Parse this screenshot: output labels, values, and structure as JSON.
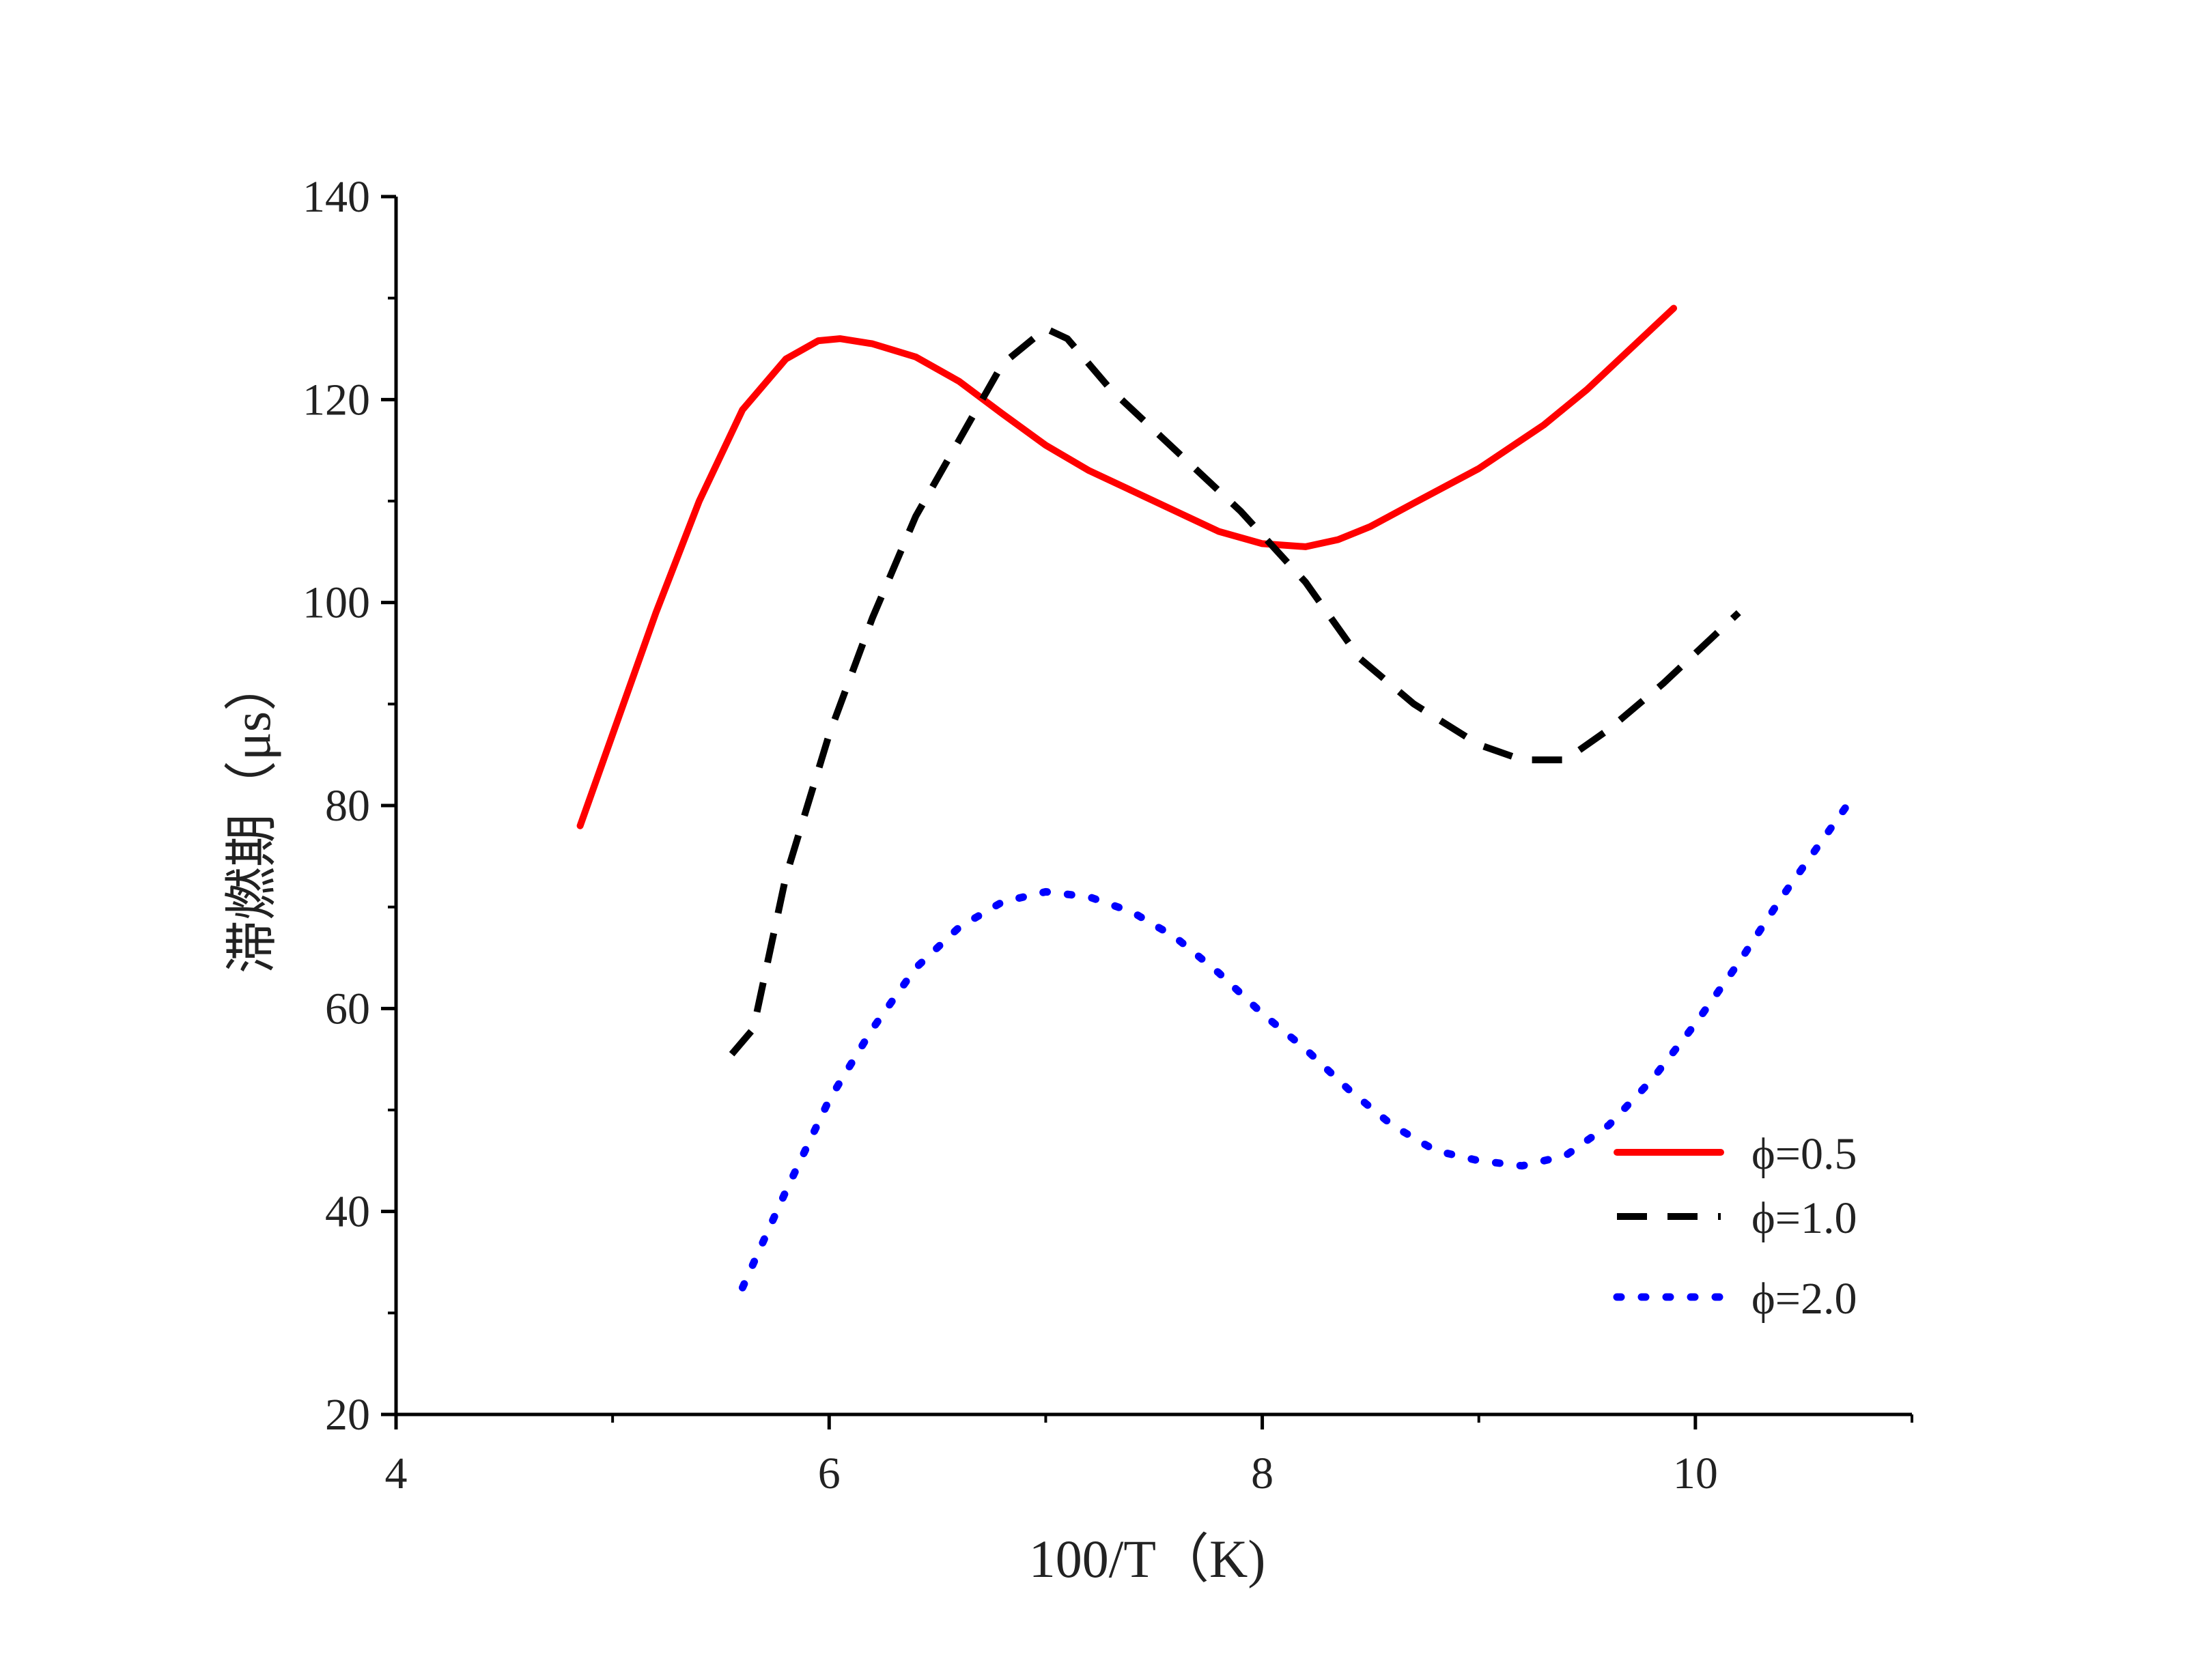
{
  "chart_data": {
    "type": "line",
    "title": "",
    "xlabel": "100/T（K)",
    "ylabel": "滞燃期（μs）",
    "xlim": [
      4,
      11
    ],
    "ylim": [
      20,
      140
    ],
    "xticks": [
      4,
      6,
      8,
      10
    ],
    "xtick_labels": [
      "4",
      "6",
      "8",
      "10"
    ],
    "yticks": [
      20,
      40,
      60,
      80,
      100,
      120,
      140
    ],
    "ytick_labels": [
      "20",
      "40",
      "60",
      "80",
      "100",
      "120",
      "140"
    ],
    "grid": false,
    "legend_position": "lower-right",
    "series": [
      {
        "name": "ϕ=0.5",
        "style": "solid",
        "color": "#ff0000",
        "x": [
          4.85,
          5.0,
          5.2,
          5.4,
          5.6,
          5.8,
          5.95,
          6.05,
          6.2,
          6.4,
          6.6,
          6.8,
          7.0,
          7.2,
          7.4,
          7.6,
          7.8,
          8.0,
          8.2,
          8.35,
          8.5,
          8.7,
          9.0,
          9.3,
          9.5,
          9.7,
          9.9
        ],
        "y": [
          78,
          87,
          99,
          110,
          119,
          124,
          125.8,
          126,
          125.5,
          124.2,
          121.8,
          118.6,
          115.5,
          113,
          111,
          109,
          107,
          105.8,
          105.5,
          106.2,
          107.5,
          109.8,
          113.2,
          117.5,
          121,
          125,
          129
        ]
      },
      {
        "name": "ϕ=1.0",
        "style": "dashed",
        "color": "#000000",
        "x": [
          5.55,
          5.65,
          5.8,
          6.0,
          6.2,
          6.4,
          6.6,
          6.8,
          7.0,
          7.1,
          7.3,
          7.6,
          7.9,
          8.2,
          8.45,
          8.7,
          9.0,
          9.2,
          9.4,
          9.6,
          9.85,
          10.05,
          10.2
        ],
        "y": [
          55.5,
          58,
          73,
          87,
          98.5,
          108.5,
          116,
          123.5,
          127,
          126,
          121,
          115,
          109,
          102,
          94.5,
          90,
          86,
          84.5,
          84.5,
          87.5,
          92,
          96,
          99
        ]
      },
      {
        "name": "ϕ=2.0",
        "style": "dotted",
        "color": "#0000ff",
        "x": [
          5.6,
          5.8,
          6.0,
          6.2,
          6.4,
          6.6,
          6.8,
          7.0,
          7.2,
          7.4,
          7.6,
          7.8,
          8.0,
          8.2,
          8.4,
          8.6,
          8.8,
          9.0,
          9.2,
          9.4,
          9.6,
          9.8,
          10.0,
          10.2,
          10.4,
          10.7
        ],
        "y": [
          32.5,
          42,
          51,
          58,
          64,
          68,
          70.5,
          71.5,
          71,
          69.5,
          67,
          63.5,
          59.5,
          56,
          52,
          48.5,
          46,
          45,
          44.5,
          45.5,
          48.5,
          53,
          58.5,
          64.5,
          71,
          80
        ]
      }
    ]
  }
}
